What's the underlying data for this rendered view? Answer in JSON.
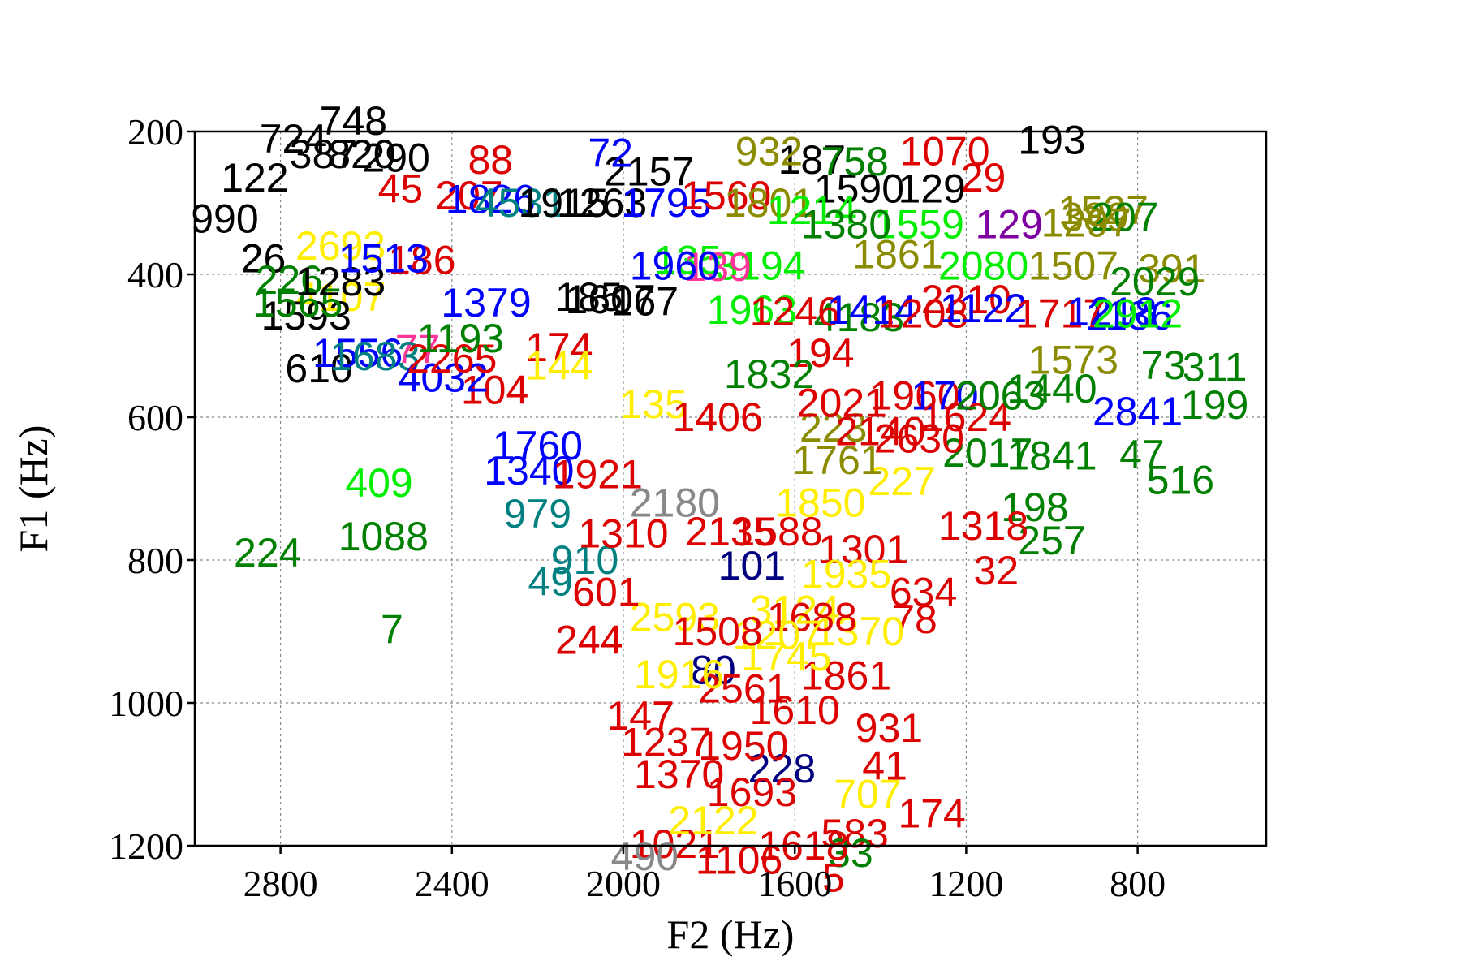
{
  "chart_data": {
    "type": "scatter",
    "title": "",
    "xlabel": "F2 (Hz)",
    "ylabel": "F1 (Hz)",
    "xlim": [
      3000,
      500
    ],
    "ylim": [
      1200,
      200
    ],
    "x_reversed": true,
    "y_reversed": true,
    "x_ticks": [
      "2800",
      "2400",
      "2000",
      "1600",
      "1200",
      "800"
    ],
    "y_ticks": [
      "200",
      "400",
      "600",
      "800",
      "1000",
      "1200"
    ],
    "grid": true,
    "marker": "numeric text labels",
    "colors": {
      "black": "#000000",
      "blue": "#0000ff",
      "red": "#dd0000",
      "green": "#008000",
      "lime": "#00ee00",
      "yellow": "#ffee00",
      "olive": "#8b8b00",
      "teal": "#008080",
      "purple": "#7f00a0",
      "navy": "#000080",
      "pink": "#ff3399",
      "gray": "#888888"
    },
    "points": [
      {
        "label": "748",
        "x": 2630,
        "y": 185,
        "color": "black"
      },
      {
        "label": "724",
        "x": 2770,
        "y": 210,
        "color": "black"
      },
      {
        "label": "387",
        "x": 2700,
        "y": 232,
        "color": "black"
      },
      {
        "label": "820",
        "x": 2610,
        "y": 232,
        "color": "black"
      },
      {
        "label": "290",
        "x": 2530,
        "y": 237,
        "color": "black"
      },
      {
        "label": "122",
        "x": 2860,
        "y": 265,
        "color": "black"
      },
      {
        "label": "990",
        "x": 2930,
        "y": 322,
        "color": "black"
      },
      {
        "label": "26",
        "x": 2840,
        "y": 378,
        "color": "black"
      },
      {
        "label": "193",
        "x": 1000,
        "y": 212,
        "color": "black"
      },
      {
        "label": "187",
        "x": 1560,
        "y": 240,
        "color": "black"
      },
      {
        "label": "129",
        "x": 1280,
        "y": 280,
        "color": "black"
      },
      {
        "label": "610",
        "x": 2710,
        "y": 532,
        "color": "black"
      },
      {
        "label": "185",
        "x": 2080,
        "y": 432,
        "color": "black"
      },
      {
        "label": "2157",
        "x": 1940,
        "y": 256,
        "color": "black"
      },
      {
        "label": "1590",
        "x": 1450,
        "y": 280,
        "color": "black"
      },
      {
        "label": "932",
        "x": 1660,
        "y": 228,
        "color": "olive"
      },
      {
        "label": "389",
        "x": 900,
        "y": 320,
        "color": "olive"
      },
      {
        "label": "391",
        "x": 720,
        "y": 392,
        "color": "olive"
      },
      {
        "label": "1070",
        "x": 1250,
        "y": 228,
        "color": "red"
      },
      {
        "label": "88",
        "x": 2310,
        "y": 240,
        "color": "red"
      },
      {
        "label": "207",
        "x": 2360,
        "y": 290,
        "color": "red"
      },
      {
        "label": "45",
        "x": 2520,
        "y": 280,
        "color": "red"
      },
      {
        "label": "29",
        "x": 1160,
        "y": 265,
        "color": "red"
      },
      {
        "label": "186",
        "x": 2470,
        "y": 380,
        "color": "red"
      },
      {
        "label": "174",
        "x": 2150,
        "y": 502,
        "color": "red"
      },
      {
        "label": "77",
        "x": 2480,
        "y": 505,
        "color": "pink"
      },
      {
        "label": "104",
        "x": 2300,
        "y": 562,
        "color": "red"
      },
      {
        "label": "2210",
        "x": 1200,
        "y": 435,
        "color": "red"
      },
      {
        "label": "223",
        "x": 1510,
        "y": 615,
        "color": "olive"
      },
      {
        "label": "227",
        "x": 1350,
        "y": 690,
        "color": "yellow"
      },
      {
        "label": "144",
        "x": 2150,
        "y": 528,
        "color": "yellow"
      },
      {
        "label": "135",
        "x": 1930,
        "y": 582,
        "color": "yellow"
      },
      {
        "label": "72",
        "x": 2030,
        "y": 230,
        "color": "blue"
      },
      {
        "label": "1607",
        "x": 2030,
        "y": 435,
        "color": "black"
      },
      {
        "label": "3194",
        "x": 1680,
        "y": 388,
        "color": "lime"
      },
      {
        "label": "2080",
        "x": 1160,
        "y": 388,
        "color": "lime"
      },
      {
        "label": "758",
        "x": 1460,
        "y": 242,
        "color": "green"
      },
      {
        "label": "1507",
        "x": 950,
        "y": 388,
        "color": "olive"
      },
      {
        "label": "1186",
        "x": 820,
        "y": 458,
        "color": "blue"
      },
      {
        "label": "409",
        "x": 2570,
        "y": 692,
        "color": "lime"
      },
      {
        "label": "1088",
        "x": 2560,
        "y": 767,
        "color": "green"
      },
      {
        "label": "224",
        "x": 2830,
        "y": 790,
        "color": "green"
      },
      {
        "label": "7",
        "x": 2540,
        "y": 897,
        "color": "green"
      },
      {
        "label": "4183",
        "x": 1450,
        "y": 460,
        "color": "green"
      },
      {
        "label": "1841",
        "x": 1000,
        "y": 654,
        "color": "green"
      },
      {
        "label": "47",
        "x": 790,
        "y": 652,
        "color": "green"
      },
      {
        "label": "516",
        "x": 700,
        "y": 688,
        "color": "green"
      },
      {
        "label": "257",
        "x": 1000,
        "y": 773,
        "color": "green"
      },
      {
        "label": "198",
        "x": 1040,
        "y": 726,
        "color": "green"
      },
      {
        "label": "311",
        "x": 620,
        "y": 530,
        "color": "green"
      },
      {
        "label": "199",
        "x": 620,
        "y": 583,
        "color": "green"
      },
      {
        "label": "73",
        "x": 740,
        "y": 527,
        "color": "green"
      },
      {
        "label": "2841",
        "x": 800,
        "y": 592,
        "color": "blue"
      },
      {
        "label": "1318",
        "x": 1160,
        "y": 752,
        "color": "red"
      },
      {
        "label": "32",
        "x": 1130,
        "y": 815,
        "color": "red"
      },
      {
        "label": "634",
        "x": 1300,
        "y": 845,
        "color": "red"
      },
      {
        "label": "78",
        "x": 1320,
        "y": 883,
        "color": "red"
      },
      {
        "label": "49",
        "x": 2170,
        "y": 830,
        "color": "teal"
      },
      {
        "label": "101",
        "x": 1700,
        "y": 808,
        "color": "navy"
      },
      {
        "label": "80",
        "x": 1790,
        "y": 954,
        "color": "navy"
      },
      {
        "label": "244",
        "x": 2080,
        "y": 912,
        "color": "red"
      },
      {
        "label": "147",
        "x": 1960,
        "y": 1018,
        "color": "red"
      },
      {
        "label": "1237",
        "x": 1900,
        "y": 1055,
        "color": "red"
      },
      {
        "label": "1370",
        "x": 1870,
        "y": 1100,
        "color": "red"
      },
      {
        "label": "228",
        "x": 1630,
        "y": 1092,
        "color": "navy"
      },
      {
        "label": "707",
        "x": 1430,
        "y": 1128,
        "color": "yellow"
      },
      {
        "label": "174",
        "x": 1280,
        "y": 1155,
        "color": "red"
      },
      {
        "label": "583",
        "x": 1460,
        "y": 1183,
        "color": "red"
      },
      {
        "label": "33",
        "x": 1470,
        "y": 1210,
        "color": "green"
      },
      {
        "label": "1021",
        "x": 1880,
        "y": 1198,
        "color": "red"
      },
      {
        "label": "490",
        "x": 1950,
        "y": 1215,
        "color": "gray"
      },
      {
        "label": "5",
        "x": 1510,
        "y": 1245,
        "color": "red"
      },
      {
        "label": "41",
        "x": 1390,
        "y": 1088,
        "color": "red"
      },
      {
        "label": "931",
        "x": 1380,
        "y": 1035,
        "color": "red"
      },
      {
        "label": "1861",
        "x": 1480,
        "y": 962,
        "color": "red"
      },
      {
        "label": "1370",
        "x": 1450,
        "y": 900,
        "color": "yellow"
      },
      {
        "label": "1301",
        "x": 1440,
        "y": 785,
        "color": "red"
      },
      {
        "label": "1588",
        "x": 1640,
        "y": 760,
        "color": "red"
      },
      {
        "label": "1960",
        "x": 1320,
        "y": 570,
        "color": "red"
      },
      {
        "label": "2021",
        "x": 1490,
        "y": 580,
        "color": "red"
      },
      {
        "label": "1406",
        "x": 1780,
        "y": 600,
        "color": "red"
      },
      {
        "label": "2135",
        "x": 1750,
        "y": 760,
        "color": "red"
      },
      {
        "label": "3124",
        "x": 1600,
        "y": 870,
        "color": "yellow"
      },
      {
        "label": "1745",
        "x": 1620,
        "y": 935,
        "color": "yellow"
      },
      {
        "label": "2561",
        "x": 1720,
        "y": 980,
        "color": "red"
      },
      {
        "label": "1610",
        "x": 1600,
        "y": 1010,
        "color": "red"
      },
      {
        "label": "1950",
        "x": 1720,
        "y": 1060,
        "color": "red"
      },
      {
        "label": "2593",
        "x": 1880,
        "y": 880,
        "color": "yellow"
      },
      {
        "label": "1916",
        "x": 1870,
        "y": 960,
        "color": "yellow"
      },
      {
        "label": "601",
        "x": 2040,
        "y": 845,
        "color": "red"
      },
      {
        "label": "910",
        "x": 2090,
        "y": 800,
        "color": "teal"
      },
      {
        "label": "1310",
        "x": 2000,
        "y": 763,
        "color": "red"
      },
      {
        "label": "1760",
        "x": 2200,
        "y": 640,
        "color": "blue"
      },
      {
        "label": "1340",
        "x": 2220,
        "y": 675,
        "color": "blue"
      },
      {
        "label": "979",
        "x": 2200,
        "y": 735,
        "color": "teal"
      },
      {
        "label": "2180",
        "x": 1880,
        "y": 720,
        "color": "gray"
      },
      {
        "label": "1921",
        "x": 2060,
        "y": 680,
        "color": "red"
      },
      {
        "label": "194",
        "x": 1540,
        "y": 510,
        "color": "red"
      },
      {
        "label": "1963",
        "x": 1700,
        "y": 450,
        "color": "lime"
      },
      {
        "label": "1246",
        "x": 1600,
        "y": 452,
        "color": "red"
      },
      {
        "label": "1414",
        "x": 1420,
        "y": 450,
        "color": "blue"
      },
      {
        "label": "170",
        "x": 1250,
        "y": 570,
        "color": "blue"
      },
      {
        "label": "1208",
        "x": 1300,
        "y": 455,
        "color": "red"
      },
      {
        "label": "1122",
        "x": 1160,
        "y": 448,
        "color": "blue"
      },
      {
        "label": "1717",
        "x": 980,
        "y": 455,
        "color": "red"
      },
      {
        "label": "1218",
        "x": 860,
        "y": 452,
        "color": "blue"
      },
      {
        "label": "2912",
        "x": 800,
        "y": 455,
        "color": "lime"
      },
      {
        "label": "2029",
        "x": 760,
        "y": 410,
        "color": "green"
      },
      {
        "label": "1527",
        "x": 880,
        "y": 310,
        "color": "olive"
      },
      {
        "label": "207",
        "x": 830,
        "y": 320,
        "color": "green"
      },
      {
        "label": "1297",
        "x": 920,
        "y": 328,
        "color": "olive"
      },
      {
        "label": "129",
        "x": 1100,
        "y": 330,
        "color": "purple"
      },
      {
        "label": "1559",
        "x": 1310,
        "y": 330,
        "color": "lime"
      },
      {
        "label": "1861",
        "x": 1360,
        "y": 372,
        "color": "olive"
      },
      {
        "label": "135",
        "x": 1850,
        "y": 380,
        "color": "lime"
      },
      {
        "label": "139",
        "x": 1780,
        "y": 390,
        "color": "pink"
      },
      {
        "label": "1960",
        "x": 1880,
        "y": 388,
        "color": "blue"
      },
      {
        "label": "167",
        "x": 1950,
        "y": 438,
        "color": "black"
      },
      {
        "label": "4107",
        "x": 2660,
        "y": 432,
        "color": "yellow"
      },
      {
        "label": "1593",
        "x": 2740,
        "y": 458,
        "color": "black"
      },
      {
        "label": "1565",
        "x": 2760,
        "y": 440,
        "color": "green"
      },
      {
        "label": "226",
        "x": 2780,
        "y": 408,
        "color": "green"
      },
      {
        "label": "1283",
        "x": 2660,
        "y": 410,
        "color": "black"
      },
      {
        "label": "2693",
        "x": 2660,
        "y": 360,
        "color": "yellow"
      },
      {
        "label": "1513",
        "x": 2560,
        "y": 378,
        "color": "blue"
      },
      {
        "label": "1556",
        "x": 2620,
        "y": 510,
        "color": "blue"
      },
      {
        "label": "1683",
        "x": 2580,
        "y": 515,
        "color": "teal"
      },
      {
        "label": "4032",
        "x": 2420,
        "y": 545,
        "color": "blue"
      },
      {
        "label": "2265",
        "x": 2400,
        "y": 518,
        "color": "red"
      },
      {
        "label": "1193",
        "x": 2380,
        "y": 490,
        "color": "green"
      },
      {
        "label": "1379",
        "x": 2320,
        "y": 440,
        "color": "blue"
      },
      {
        "label": "1826",
        "x": 2310,
        "y": 295,
        "color": "blue"
      },
      {
        "label": "4531",
        "x": 2240,
        "y": 300,
        "color": "teal"
      },
      {
        "label": "1915",
        "x": 2140,
        "y": 300,
        "color": "black"
      },
      {
        "label": "1263",
        "x": 2050,
        "y": 300,
        "color": "black"
      },
      {
        "label": "1795",
        "x": 1900,
        "y": 300,
        "color": "blue"
      },
      {
        "label": "1560",
        "x": 1760,
        "y": 290,
        "color": "red"
      },
      {
        "label": "1801",
        "x": 1660,
        "y": 300,
        "color": "olive"
      },
      {
        "label": "1214",
        "x": 1560,
        "y": 310,
        "color": "lime"
      },
      {
        "label": "1380",
        "x": 1480,
        "y": 330,
        "color": "green"
      },
      {
        "label": "1624",
        "x": 1200,
        "y": 600,
        "color": "red"
      },
      {
        "label": "2063",
        "x": 1120,
        "y": 570,
        "color": "green"
      },
      {
        "label": "2017",
        "x": 1150,
        "y": 650,
        "color": "green"
      },
      {
        "label": "2630",
        "x": 1310,
        "y": 630,
        "color": "red"
      },
      {
        "label": "1573",
        "x": 950,
        "y": 520,
        "color": "olive"
      },
      {
        "label": "1440",
        "x": 1000,
        "y": 560,
        "color": "green"
      },
      {
        "label": "1832",
        "x": 1660,
        "y": 540,
        "color": "green"
      },
      {
        "label": "1761",
        "x": 1500,
        "y": 660,
        "color": "olive"
      },
      {
        "label": "2140",
        "x": 1400,
        "y": 620,
        "color": "red"
      },
      {
        "label": "1850",
        "x": 1540,
        "y": 720,
        "color": "yellow"
      },
      {
        "label": "1935",
        "x": 1480,
        "y": 820,
        "color": "yellow"
      },
      {
        "label": "1688",
        "x": 1560,
        "y": 880,
        "color": "red"
      },
      {
        "label": "1207",
        "x": 1640,
        "y": 905,
        "color": "yellow"
      },
      {
        "label": "1508",
        "x": 1780,
        "y": 900,
        "color": "red"
      },
      {
        "label": "1693",
        "x": 1700,
        "y": 1125,
        "color": "red"
      },
      {
        "label": "2122",
        "x": 1790,
        "y": 1165,
        "color": "yellow"
      },
      {
        "label": "1618",
        "x": 1580,
        "y": 1200,
        "color": "red"
      },
      {
        "label": "1106",
        "x": 1730,
        "y": 1220,
        "color": "red"
      }
    ]
  }
}
